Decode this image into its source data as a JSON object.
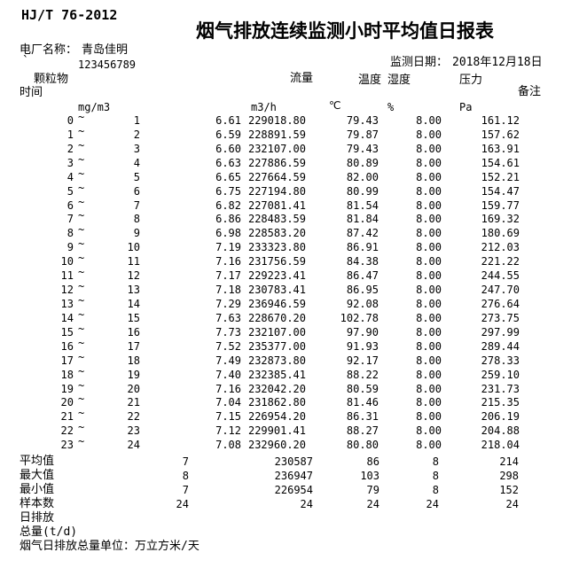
{
  "doc": {
    "standard": "HJ/T 76-2012",
    "title": "烟气排放连续监测小时平均值日报表",
    "plant_label": "电厂名称：",
    "plant_name": "青岛佳明",
    "plant_code_mark": "`",
    "plant_code": "123456789",
    "date_label": "监测日期：",
    "date_value": "2018年12月18日"
  },
  "columns": {
    "time": "时间",
    "pm": "颗粒物",
    "flow": "流量",
    "temp": "温度",
    "humidity": "湿度",
    "pressure": "压力",
    "remark": "备注"
  },
  "units": {
    "pm": "mg/m3",
    "flow": "m3/h",
    "temp": "℃",
    "humidity": "%",
    "pressure": "Pa"
  },
  "table": {
    "tilde": "~",
    "rows": [
      {
        "t1": "0",
        "t2": "1",
        "pm": "6.61",
        "flow": "229018.80",
        "temp": "79.43",
        "humidity": "8.00",
        "pressure": "161.12"
      },
      {
        "t1": "1",
        "t2": "2",
        "pm": "6.59",
        "flow": "228891.59",
        "temp": "79.87",
        "humidity": "8.00",
        "pressure": "157.62"
      },
      {
        "t1": "2",
        "t2": "3",
        "pm": "6.60",
        "flow": "232107.00",
        "temp": "79.43",
        "humidity": "8.00",
        "pressure": "163.91"
      },
      {
        "t1": "3",
        "t2": "4",
        "pm": "6.63",
        "flow": "227886.59",
        "temp": "80.89",
        "humidity": "8.00",
        "pressure": "154.61"
      },
      {
        "t1": "4",
        "t2": "5",
        "pm": "6.65",
        "flow": "227664.59",
        "temp": "82.00",
        "humidity": "8.00",
        "pressure": "152.21"
      },
      {
        "t1": "5",
        "t2": "6",
        "pm": "6.75",
        "flow": "227194.80",
        "temp": "80.99",
        "humidity": "8.00",
        "pressure": "154.47"
      },
      {
        "t1": "6",
        "t2": "7",
        "pm": "6.82",
        "flow": "227081.41",
        "temp": "81.54",
        "humidity": "8.00",
        "pressure": "159.77"
      },
      {
        "t1": "7",
        "t2": "8",
        "pm": "6.86",
        "flow": "228483.59",
        "temp": "81.84",
        "humidity": "8.00",
        "pressure": "169.32"
      },
      {
        "t1": "8",
        "t2": "9",
        "pm": "6.98",
        "flow": "228583.20",
        "temp": "87.42",
        "humidity": "8.00",
        "pressure": "180.69"
      },
      {
        "t1": "9",
        "t2": "10",
        "pm": "7.19",
        "flow": "233323.80",
        "temp": "86.91",
        "humidity": "8.00",
        "pressure": "212.03"
      },
      {
        "t1": "10",
        "t2": "11",
        "pm": "7.16",
        "flow": "231756.59",
        "temp": "84.38",
        "humidity": "8.00",
        "pressure": "221.22"
      },
      {
        "t1": "11",
        "t2": "12",
        "pm": "7.17",
        "flow": "229223.41",
        "temp": "86.47",
        "humidity": "8.00",
        "pressure": "244.55"
      },
      {
        "t1": "12",
        "t2": "13",
        "pm": "7.18",
        "flow": "230783.41",
        "temp": "86.95",
        "humidity": "8.00",
        "pressure": "247.70"
      },
      {
        "t1": "13",
        "t2": "14",
        "pm": "7.29",
        "flow": "236946.59",
        "temp": "92.08",
        "humidity": "8.00",
        "pressure": "276.64"
      },
      {
        "t1": "14",
        "t2": "15",
        "pm": "7.63",
        "flow": "228670.20",
        "temp": "102.78",
        "humidity": "8.00",
        "pressure": "273.75"
      },
      {
        "t1": "15",
        "t2": "16",
        "pm": "7.73",
        "flow": "232107.00",
        "temp": "97.90",
        "humidity": "8.00",
        "pressure": "297.99"
      },
      {
        "t1": "16",
        "t2": "17",
        "pm": "7.52",
        "flow": "235377.00",
        "temp": "91.93",
        "humidity": "8.00",
        "pressure": "289.44"
      },
      {
        "t1": "17",
        "t2": "18",
        "pm": "7.49",
        "flow": "232873.80",
        "temp": "92.17",
        "humidity": "8.00",
        "pressure": "278.33"
      },
      {
        "t1": "18",
        "t2": "19",
        "pm": "7.40",
        "flow": "232385.41",
        "temp": "88.22",
        "humidity": "8.00",
        "pressure": "259.10"
      },
      {
        "t1": "19",
        "t2": "20",
        "pm": "7.16",
        "flow": "232042.20",
        "temp": "80.59",
        "humidity": "8.00",
        "pressure": "231.73"
      },
      {
        "t1": "20",
        "t2": "21",
        "pm": "7.04",
        "flow": "231862.80",
        "temp": "81.46",
        "humidity": "8.00",
        "pressure": "215.35"
      },
      {
        "t1": "21",
        "t2": "22",
        "pm": "7.15",
        "flow": "226954.20",
        "temp": "86.31",
        "humidity": "8.00",
        "pressure": "206.19"
      },
      {
        "t1": "22",
        "t2": "23",
        "pm": "7.12",
        "flow": "229901.41",
        "temp": "88.27",
        "humidity": "8.00",
        "pressure": "204.88"
      },
      {
        "t1": "23",
        "t2": "24",
        "pm": "7.08",
        "flow": "232960.20",
        "temp": "80.80",
        "humidity": "8.00",
        "pressure": "218.04"
      }
    ]
  },
  "summary": {
    "rows": [
      {
        "label": "平均值",
        "pm": "7",
        "flow": "230587",
        "temp": "86",
        "humidity": "8",
        "pressure": "214"
      },
      {
        "label": "最大值",
        "pm": "8",
        "flow": "236947",
        "temp": "103",
        "humidity": "8",
        "pressure": "298"
      },
      {
        "label": "最小值",
        "pm": "7",
        "flow": "226954",
        "temp": "79",
        "humidity": "8",
        "pressure": "152"
      },
      {
        "label": "样本数",
        "pm": "24",
        "flow": "24",
        "temp": "24",
        "humidity": "24",
        "pressure": "24"
      },
      {
        "label": "日排放",
        "pm": "",
        "flow": "",
        "temp": "",
        "humidity": "",
        "pressure": ""
      },
      {
        "label": "总量(t/d)",
        "pm": "",
        "flow": "",
        "temp": "",
        "humidity": "",
        "pressure": ""
      }
    ]
  },
  "footer": {
    "note": "烟气日排放总量单位：万立方米/天"
  }
}
